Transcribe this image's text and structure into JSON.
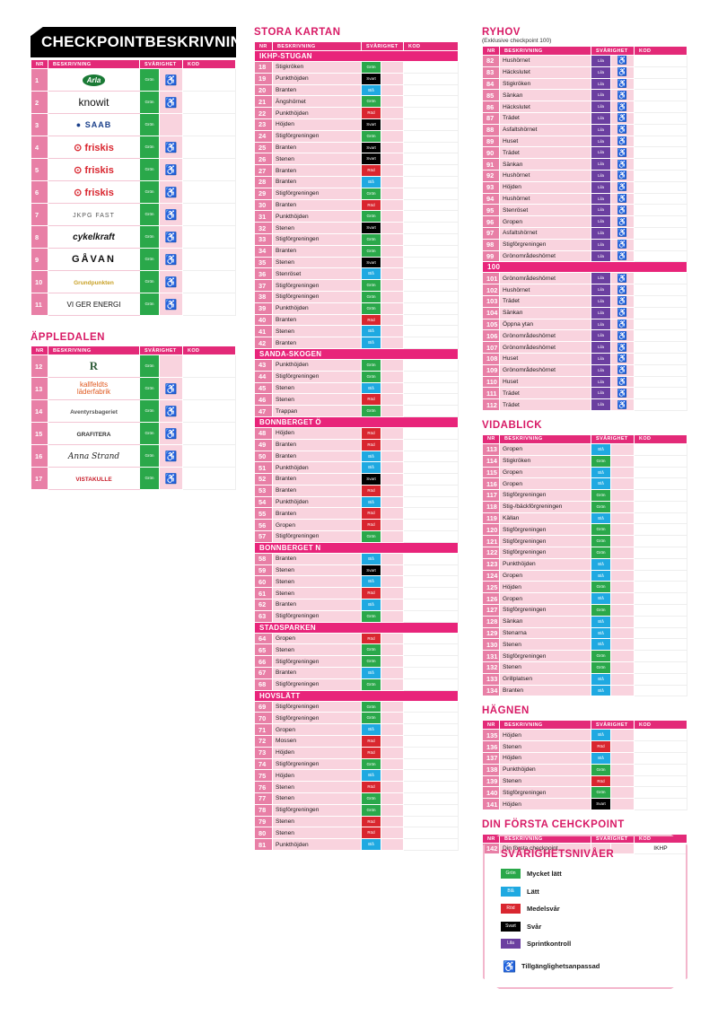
{
  "colors": {
    "Grön": "#2aa84a",
    "Blå": "#1fa9e1",
    "Röd": "#d9262f",
    "Svart": "#000000",
    "Lila": "#6b3fa0"
  },
  "accessibility_icon": "wheelchair-icon",
  "header_cols": {
    "nr": "NR",
    "desc": "BESKRIVNING",
    "diff": "SVÅRIGHET",
    "kod": "KOD"
  },
  "main": {
    "title": "CHECKPOINTBESKRIVNING",
    "rows": [
      {
        "nr": "1",
        "logo": "Arla",
        "diff": "Grön",
        "acc": true,
        "logo_color": "#1a7a35"
      },
      {
        "nr": "2",
        "logo": "knowit",
        "diff": "Grön",
        "acc": true,
        "logo_color": "#111"
      },
      {
        "nr": "3",
        "logo": "SAAB",
        "diff": "Grön",
        "acc": false,
        "logo_color": "#1a3f8a"
      },
      {
        "nr": "4",
        "logo": "friskis",
        "diff": "Grön",
        "acc": true,
        "logo_color": "#d9262f"
      },
      {
        "nr": "5",
        "logo": "friskis",
        "diff": "Grön",
        "acc": true,
        "logo_color": "#d9262f"
      },
      {
        "nr": "6",
        "logo": "friskis",
        "diff": "Grön",
        "acc": true,
        "logo_color": "#d9262f"
      },
      {
        "nr": "7",
        "logo": "JKPG FAST",
        "diff": "Grön",
        "acc": true,
        "logo_color": "#555"
      },
      {
        "nr": "8",
        "logo": "cykelkraft",
        "diff": "Grön",
        "acc": true,
        "logo_color": "#111"
      },
      {
        "nr": "9",
        "logo": "GÅVAN",
        "diff": "Grön",
        "acc": true,
        "logo_color": "#111"
      },
      {
        "nr": "10",
        "logo": "Grundpunkten",
        "diff": "Grön",
        "acc": true,
        "logo_color": "#c9a227"
      },
      {
        "nr": "11",
        "logo": "VI GER ENERGI",
        "diff": "Grön",
        "acc": true,
        "logo_color": "#111"
      }
    ]
  },
  "appledalen": {
    "title": "ÄPPLEDALEN",
    "rows": [
      {
        "nr": "12",
        "logo": "R",
        "diff": "Grön",
        "acc": false,
        "logo_color": "#2f5d3a"
      },
      {
        "nr": "13",
        "logo": "kallfeldts läderfabrik",
        "diff": "Grön",
        "acc": true,
        "logo_color": "#e05a22"
      },
      {
        "nr": "14",
        "logo": "Aventyrsbageriet",
        "diff": "Grön",
        "acc": true,
        "logo_color": "#555"
      },
      {
        "nr": "15",
        "logo": "GRAFITERA",
        "diff": "Grön",
        "acc": true,
        "logo_color": "#333"
      },
      {
        "nr": "16",
        "logo": "Anna Strand",
        "diff": "Grön",
        "acc": true,
        "logo_color": "#222"
      },
      {
        "nr": "17",
        "logo": "VISTAKULLE",
        "diff": "Grön",
        "acc": true,
        "logo_color": "#c81d2a"
      }
    ]
  },
  "stora": {
    "title": "STORA KARTAN",
    "sections": [
      {
        "name": "IKHP-STUGAN",
        "rows": [
          [
            "18",
            "Stigkröken",
            "Grön"
          ],
          [
            "19",
            "Punkthöjden",
            "Svart"
          ],
          [
            "20",
            "Branten",
            "Blå"
          ],
          [
            "21",
            "Ängshörnet",
            "Grön"
          ],
          [
            "22",
            "Punkthöjden",
            "Röd"
          ],
          [
            "23",
            "Höjden",
            "Svart"
          ],
          [
            "24",
            "Stigförgreningen",
            "Grön"
          ],
          [
            "25",
            "Branten",
            "Svart"
          ],
          [
            "26",
            "Stenen",
            "Svart"
          ],
          [
            "27",
            "Branten",
            "Röd"
          ],
          [
            "28",
            "Branten",
            "Blå"
          ],
          [
            "29",
            "Stigförgreningen",
            "Grön"
          ],
          [
            "30",
            "Branten",
            "Röd"
          ],
          [
            "31",
            "Punkthöjden",
            "Grön"
          ],
          [
            "32",
            "Stenen",
            "Svart"
          ],
          [
            "33",
            "Stigförgreningen",
            "Grön"
          ],
          [
            "34",
            "Branten",
            "Grön"
          ],
          [
            "35",
            "Stenen",
            "Svart"
          ],
          [
            "36",
            "Stenröset",
            "Blå"
          ],
          [
            "37",
            "Stigförgreningen",
            "Grön"
          ],
          [
            "38",
            "Stigförgreningen",
            "Grön"
          ],
          [
            "39",
            "Punkthöjden",
            "Grön"
          ],
          [
            "40",
            "Branten",
            "Röd"
          ],
          [
            "41",
            "Stenen",
            "Blå"
          ],
          [
            "42",
            "Branten",
            "Blå"
          ]
        ]
      },
      {
        "name": "SANDA-SKOGEN",
        "rows": [
          [
            "43",
            "Punkthöjden",
            "Grön"
          ],
          [
            "44",
            "Stigförgreningen",
            "Grön"
          ],
          [
            "45",
            "Stenen",
            "Blå"
          ],
          [
            "46",
            "Stenen",
            "Röd"
          ],
          [
            "47",
            "Trappan",
            "Grön"
          ]
        ]
      },
      {
        "name": "BONNBERGET Ö",
        "rows": [
          [
            "48",
            "Höjden",
            "Röd"
          ],
          [
            "49",
            "Branten",
            "Röd"
          ],
          [
            "50",
            "Branten",
            "Blå"
          ],
          [
            "51",
            "Punkthöjden",
            "Blå"
          ],
          [
            "52",
            "Branten",
            "Svart"
          ],
          [
            "53",
            "Branten",
            "Röd"
          ],
          [
            "54",
            "Punkthöjden",
            "Blå"
          ],
          [
            "55",
            "Branten",
            "Röd"
          ],
          [
            "56",
            "Gropen",
            "Röd"
          ],
          [
            "57",
            "Stigförgreningen",
            "Grön"
          ]
        ]
      },
      {
        "name": "BONNBERGET N",
        "rows": [
          [
            "58",
            "Branten",
            "Blå"
          ],
          [
            "59",
            "Stenen",
            "Svart"
          ],
          [
            "60",
            "Stenen",
            "Blå"
          ],
          [
            "61",
            "Stenen",
            "Röd"
          ],
          [
            "62",
            "Branten",
            "Blå"
          ],
          [
            "63",
            "Stigförgreningen",
            "Grön"
          ]
        ]
      },
      {
        "name": "STADSPARKEN",
        "rows": [
          [
            "64",
            "Gropen",
            "Röd"
          ],
          [
            "65",
            "Stenen",
            "Grön"
          ],
          [
            "66",
            "Stigförgreningen",
            "Grön"
          ],
          [
            "67",
            "Branten",
            "Blå"
          ],
          [
            "68",
            "Stigförgreningen",
            "Grön"
          ]
        ]
      },
      {
        "name": "HOVSLÄTT",
        "rows": [
          [
            "69",
            "Stigförgreningen",
            "Grön"
          ],
          [
            "70",
            "Stigförgreningen",
            "Grön"
          ],
          [
            "71",
            "Gropen",
            "Blå"
          ],
          [
            "72",
            "Mossen",
            "Röd"
          ],
          [
            "73",
            "Höjden",
            "Röd"
          ],
          [
            "74",
            "Stigförgreningen",
            "Grön"
          ],
          [
            "75",
            "Höjden",
            "Blå"
          ],
          [
            "76",
            "Stenen",
            "Röd"
          ],
          [
            "77",
            "Stenen",
            "Grön"
          ],
          [
            "78",
            "Stigförgreningen",
            "Grön"
          ],
          [
            "79",
            "Stenen",
            "Röd"
          ],
          [
            "80",
            "Stenen",
            "Röd"
          ],
          [
            "81",
            "Punkthöjden",
            "Blå"
          ]
        ]
      }
    ]
  },
  "ryhov": {
    "title": "RYHOV",
    "subtitle": "(Exklusive checkpoint 100)",
    "rows_a": [
      [
        "82",
        "Hushörnet",
        "Lila"
      ],
      [
        "83",
        "Häckslutet",
        "Lila"
      ],
      [
        "84",
        "Stigkröken",
        "Lila"
      ],
      [
        "85",
        "Sänkan",
        "Lila"
      ],
      [
        "86",
        "Häckslutet",
        "Lila"
      ],
      [
        "87",
        "Trädet",
        "Lila"
      ],
      [
        "88",
        "Asfaltshörnet",
        "Lila"
      ],
      [
        "89",
        "Huset",
        "Lila"
      ],
      [
        "90",
        "Trädet",
        "Lila"
      ],
      [
        "91",
        "Sänkan",
        "Lila"
      ],
      [
        "92",
        "Hushörnet",
        "Lila"
      ],
      [
        "93",
        "Höjden",
        "Lila"
      ],
      [
        "94",
        "Hushörnet",
        "Lila"
      ],
      [
        "95",
        "Stenröset",
        "Lila"
      ],
      [
        "96",
        "Gropen",
        "Lila"
      ],
      [
        "97",
        "Asfaltshörnet",
        "Lila"
      ],
      [
        "98",
        "Stigförgreningen",
        "Lila"
      ],
      [
        "99",
        "Grönområdeshörnet",
        "Lila"
      ]
    ],
    "row100": "100",
    "rows_b": [
      [
        "101",
        "Grönområdeshörnet",
        "Lila"
      ],
      [
        "102",
        "Hushörnet",
        "Lila"
      ],
      [
        "103",
        "Trädet",
        "Lila"
      ],
      [
        "104",
        "Sänkan",
        "Lila"
      ],
      [
        "105",
        "Öppna ytan",
        "Lila"
      ],
      [
        "106",
        "Grönområdeshörnet",
        "Lila"
      ],
      [
        "107",
        "Grönområdeshörnet",
        "Lila"
      ],
      [
        "108",
        "Huset",
        "Lila"
      ],
      [
        "109",
        "Grönområdeshörnet",
        "Lila"
      ],
      [
        "110",
        "Huset",
        "Lila"
      ],
      [
        "111",
        "Trädet",
        "Lila"
      ],
      [
        "112",
        "Trädet",
        "Lila"
      ]
    ]
  },
  "vidablick": {
    "title": "VIDABLICK",
    "rows": [
      [
        "113",
        "Gropen",
        "Blå"
      ],
      [
        "114",
        "Stigkröken",
        "Grön"
      ],
      [
        "115",
        "Gropen",
        "Blå"
      ],
      [
        "116",
        "Gropen",
        "Blå"
      ],
      [
        "117",
        "Stigförgreningen",
        "Grön"
      ],
      [
        "118",
        "Stig-/bäckförgreningen",
        "Grön"
      ],
      [
        "119",
        "Källan",
        "Blå"
      ],
      [
        "120",
        "Stigförgreningen",
        "Grön"
      ],
      [
        "121",
        "Stigförgreningen",
        "Grön"
      ],
      [
        "122",
        "Stigförgreningen",
        "Grön"
      ],
      [
        "123",
        "Punkthöjden",
        "Blå"
      ],
      [
        "124",
        "Gropen",
        "Blå"
      ],
      [
        "125",
        "Höjden",
        "Grön"
      ],
      [
        "126",
        "Gropen",
        "Blå"
      ],
      [
        "127",
        "Stigförgreningen",
        "Grön"
      ],
      [
        "128",
        "Sänkan",
        "Blå"
      ],
      [
        "129",
        "Stenarna",
        "Blå"
      ],
      [
        "130",
        "Stenen",
        "Blå"
      ],
      [
        "131",
        "Stigförgreningen",
        "Grön"
      ],
      [
        "132",
        "Stenen",
        "Grön"
      ],
      [
        "133",
        "Grillplatsen",
        "Blå"
      ],
      [
        "134",
        "Branten",
        "Blå"
      ]
    ]
  },
  "hagnen": {
    "title": "HÄGNEN",
    "rows": [
      [
        "135",
        "Höjden",
        "Blå"
      ],
      [
        "136",
        "Stenen",
        "Röd"
      ],
      [
        "137",
        "Höjden",
        "Blå"
      ],
      [
        "138",
        "Punkthöjden",
        "Grön"
      ],
      [
        "139",
        "Stenen",
        "Röd"
      ],
      [
        "140",
        "Stigförgreningen",
        "Grön"
      ],
      [
        "141",
        "Höjden",
        "Svart"
      ]
    ]
  },
  "forsta": {
    "title": "DIN FÖRSTA CEHCKPOINT",
    "nr": "142",
    "desc": "Din första checkpoint",
    "kod": "IKHP"
  },
  "legend": {
    "title": "SVÅRIGHETSNIVÅER",
    "items": [
      {
        "badge": "Grön",
        "label": "Mycket lätt"
      },
      {
        "badge": "Blå",
        "label": "Lätt"
      },
      {
        "badge": "Röd",
        "label": "Medelsvår"
      },
      {
        "badge": "Svart",
        "label": "Svår"
      },
      {
        "badge": "Lila",
        "label": "Sprintkontroll"
      }
    ],
    "access_label": "Tillgänglighetsanpassad"
  }
}
